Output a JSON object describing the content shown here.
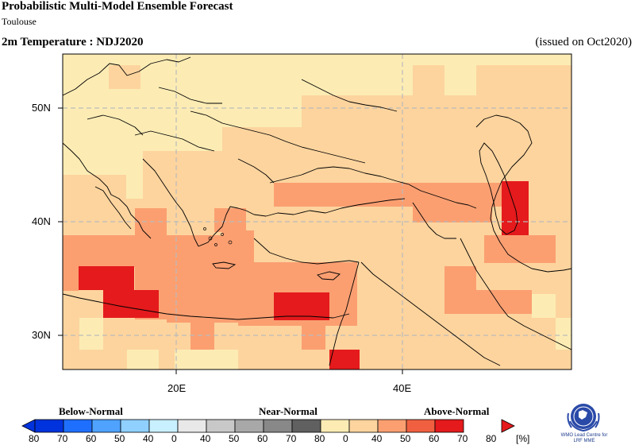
{
  "header": {
    "title": "Probabilistic Multi-Model Ensemble Forecast",
    "subtitle": "Toulouse",
    "variable": "2m Temperature : NDJ2020",
    "issued": "(issued on Oct2020)"
  },
  "map": {
    "lat_labels": [
      "50N",
      "40N",
      "30N"
    ],
    "lon_labels": [
      "20E",
      "40E"
    ],
    "extent": {
      "lon_min": 10,
      "lon_max": 55,
      "lat_min": 27,
      "lat_max": 55
    },
    "grid_color": "#bbbbbb"
  },
  "legend": {
    "categories": [
      "Below-Normal",
      "Near-Normal",
      "Above-Normal"
    ],
    "unit": "[%]",
    "labels": [
      "80",
      "70",
      "60",
      "50",
      "40",
      "0",
      "40",
      "50",
      "60",
      "70",
      "80",
      "0",
      "40",
      "50",
      "60",
      "70",
      "80"
    ],
    "colors": {
      "below": [
        "#0033dd",
        "#1f6fff",
        "#4fa3ff",
        "#8fd0ff",
        "#c8f0ff"
      ],
      "near": [
        "#e8e8e8",
        "#c8c8c8",
        "#a8a8a8",
        "#888888",
        "#606060"
      ],
      "above": [
        "#fcecb4",
        "#fdd49e",
        "#fb9f71",
        "#f06040",
        "#e41a1c"
      ]
    }
  },
  "logo": {
    "caption_line1": "WMO Lead Centre for",
    "caption_line2": "LRF MME"
  }
}
